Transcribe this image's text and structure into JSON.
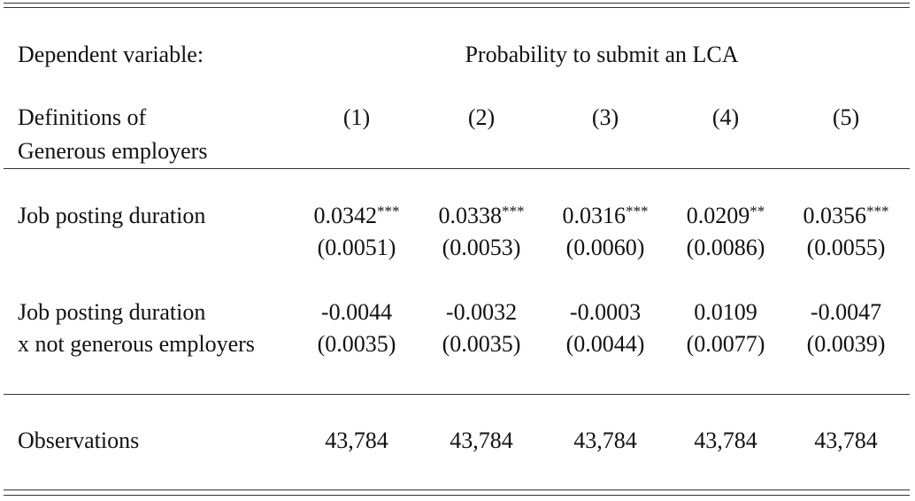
{
  "table": {
    "dependent_label": "Dependent variable:",
    "dependent_variable": "Probability to submit an LCA",
    "definition_label": [
      "Definitions of",
      "Generous employers"
    ],
    "columns": [
      "(1)",
      "(2)",
      "(3)",
      "(4)",
      "(5)"
    ],
    "rows": [
      {
        "label": [
          "Job posting duration"
        ],
        "coefs": [
          {
            "coef": "0.0342",
            "stars": "***"
          },
          {
            "coef": "0.0338",
            "stars": "***"
          },
          {
            "coef": "0.0316",
            "stars": "***"
          },
          {
            "coef": "0.0209",
            "stars": "**"
          },
          {
            "coef": "0.0356",
            "stars": "***"
          }
        ],
        "se": [
          "(0.0051)",
          "(0.0053)",
          "(0.0060)",
          "(0.0086)",
          "(0.0055)"
        ]
      },
      {
        "label": [
          "Job posting duration",
          "x not generous employers"
        ],
        "coefs": [
          {
            "coef": "-0.0044"
          },
          {
            "coef": "-0.0032"
          },
          {
            "coef": "-0.0003"
          },
          {
            "coef": "0.0109"
          },
          {
            "coef": "-0.0047"
          }
        ],
        "se": [
          "(0.0035)",
          "(0.0035)",
          "(0.0044)",
          "(0.0077)",
          "(0.0039)"
        ]
      }
    ],
    "observations": {
      "label": "Observations",
      "values": [
        "43,784",
        "43,784",
        "43,784",
        "43,784",
        "43,784"
      ]
    }
  }
}
